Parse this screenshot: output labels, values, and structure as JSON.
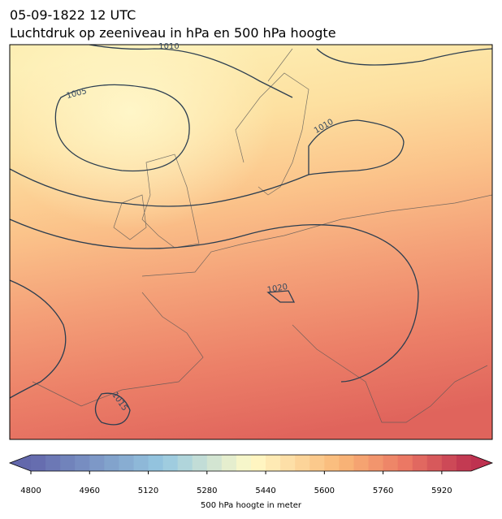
{
  "header": {
    "date": "05-09-1822 12 UTC",
    "title": "Luchtdruk op zeeniveau in hPa en 500 hPa hoogte"
  },
  "contour_labels": [
    "1010",
    "1005",
    "1010",
    "1020",
    "1015"
  ],
  "colorbar": {
    "lim": [
      4800,
      6000
    ],
    "ticks": [
      4800,
      4960,
      5120,
      5280,
      5440,
      5600,
      5760,
      5920
    ],
    "label": "500 hPa hoogte in meter"
  }
}
